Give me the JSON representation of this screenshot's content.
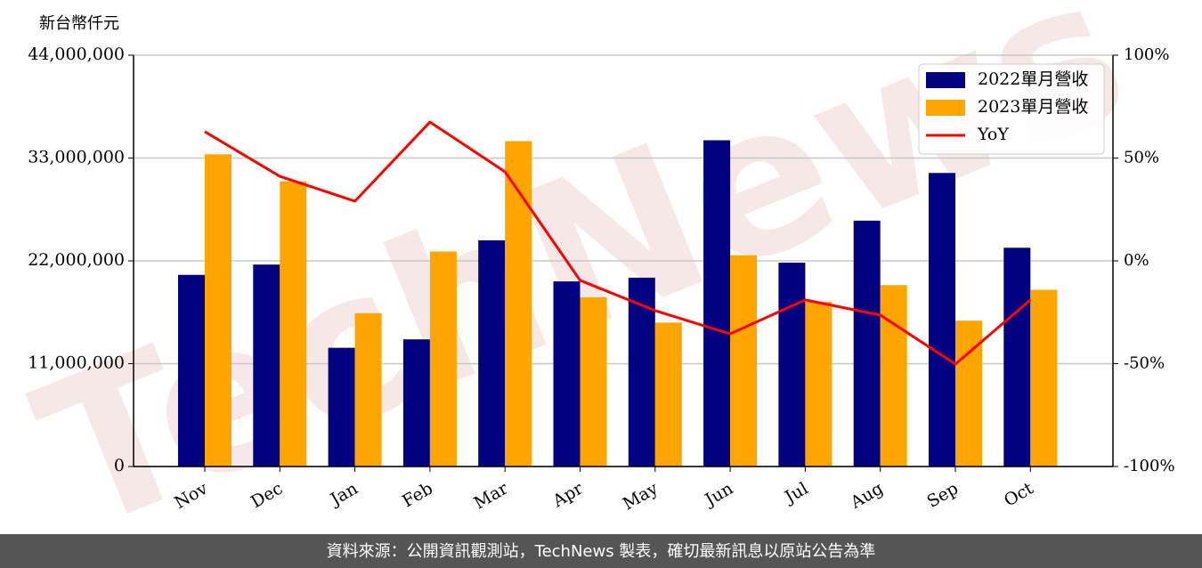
{
  "chart_data": {
    "type": "bar_line",
    "y_label": "新台幣仟元",
    "watermark": "TechNews",
    "categories": [
      "Nov",
      "Dec",
      "Jan",
      "Feb",
      "Mar",
      "Apr",
      "May",
      "Jun",
      "Jul",
      "Aug",
      "Sep",
      "Oct"
    ],
    "series": [
      {
        "name": "2022單月營收",
        "color": "#000080",
        "type": "bar",
        "values": [
          20500000,
          21600000,
          12700000,
          13600000,
          24200000,
          19800000,
          20200000,
          34900000,
          21800000,
          26300000,
          31400000,
          23400000
        ]
      },
      {
        "name": "2023單月營收",
        "color": "#ffa500",
        "type": "bar",
        "values": [
          33400000,
          30500000,
          16400000,
          23000000,
          34800000,
          18100000,
          15400000,
          22600000,
          17600000,
          19400000,
          15600000,
          18900000
        ]
      },
      {
        "name": "YoY",
        "color": "#ff0000",
        "type": "line",
        "axis": "y2",
        "values": [
          62.8,
          41.1,
          29,
          67.5,
          43.3,
          -9.5,
          -24.2,
          -35.5,
          -19,
          -26.4,
          -50.2,
          -19
        ]
      }
    ],
    "ylim": [
      0,
      44000000
    ],
    "yticks": [
      0,
      {
        "value": 11000000,
        "label": "11,000,000"
      },
      {
        "value": 22000000,
        "label": "22,000,000"
      },
      {
        "value": 33000000,
        "label": "33,000,000"
      },
      {
        "value": 44000000,
        "label": "44,000,000"
      }
    ],
    "y2lim": [
      -100,
      100
    ],
    "y2ticks": [
      {
        "value": -100,
        "label": "-100%"
      },
      {
        "value": -50,
        "label": "-50%"
      },
      {
        "value": 0,
        "label": "0%"
      },
      {
        "value": 50,
        "label": "50%"
      },
      {
        "value": 100,
        "label": "100%"
      }
    ],
    "grid": true,
    "legend": "upper right"
  },
  "footer": "資料來源：公開資訊觀測站，TechNews 製表，確切最新訊息以原站公告為準"
}
